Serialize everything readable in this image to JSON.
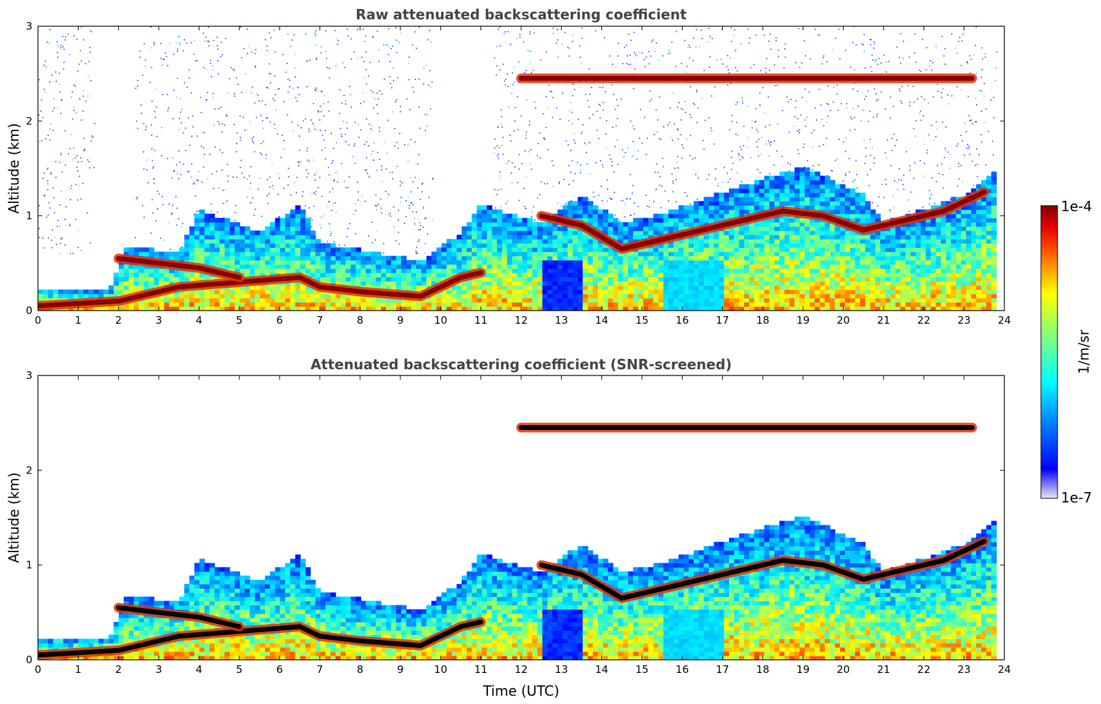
{
  "chart_data": [
    {
      "type": "heatmap",
      "title": "Raw attenuated backscattering coefficient",
      "xlabel": "",
      "ylabel": "Altitude (km)",
      "xlim": [
        0,
        24
      ],
      "ylim": [
        0,
        3
      ],
      "x_ticks": [
        "0",
        "1",
        "2",
        "3",
        "4",
        "5",
        "6",
        "7",
        "8",
        "9",
        "10",
        "11",
        "12",
        "13",
        "14",
        "15",
        "16",
        "17",
        "18",
        "19",
        "20",
        "21",
        "22",
        "23",
        "24"
      ],
      "y_ticks": [
        "0",
        "1",
        "2",
        "3"
      ],
      "screened": false,
      "layers": [
        {
          "x": [
            0,
            2.0,
            3.5,
            5.0,
            6.5,
            7.0,
            8.0,
            9.5,
            10.5,
            11.0
          ],
          "y": [
            0.05,
            0.1,
            0.25,
            0.3,
            0.35,
            0.25,
            0.2,
            0.15,
            0.35,
            0.4
          ],
          "level": "high"
        },
        {
          "x": [
            2.0,
            3.0,
            4.0,
            5.0
          ],
          "y": [
            0.55,
            0.5,
            0.45,
            0.35
          ],
          "level": "high"
        },
        {
          "x": [
            12.5,
            13.5,
            14.5,
            15.5,
            16.5,
            17.5,
            18.5,
            19.5,
            20.5,
            21.5,
            22.5,
            23.5
          ],
          "y": [
            1.0,
            0.9,
            0.65,
            0.75,
            0.85,
            0.95,
            1.05,
            1.0,
            0.85,
            0.95,
            1.05,
            1.25
          ],
          "level": "high"
        },
        {
          "x": [
            12.0,
            14.0,
            19.3,
            23.2
          ],
          "y": [
            2.45,
            2.45,
            2.45,
            2.45
          ],
          "level": "high"
        }
      ]
    },
    {
      "type": "heatmap",
      "title": "Attenuated backscattering coefficient (SNR-screened)",
      "xlabel": "Time (UTC)",
      "ylabel": "Altitude (km)",
      "xlim": [
        0,
        24
      ],
      "ylim": [
        0,
        3
      ],
      "x_ticks": [
        "0",
        "1",
        "2",
        "3",
        "4",
        "5",
        "6",
        "7",
        "8",
        "9",
        "10",
        "11",
        "12",
        "13",
        "14",
        "15",
        "16",
        "17",
        "18",
        "19",
        "20",
        "21",
        "22",
        "23",
        "24"
      ],
      "y_ticks": [
        "0",
        "1",
        "2",
        "3"
      ],
      "screened": true
    }
  ],
  "colorbar": {
    "label": "1/m/sr",
    "max_label": "1e-4",
    "min_label": "1e-7",
    "scale": "log",
    "colormap": "jet"
  }
}
